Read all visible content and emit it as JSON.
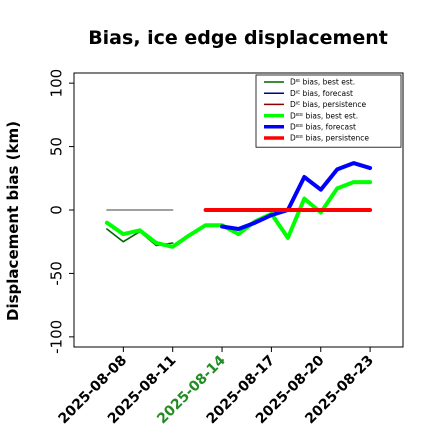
{
  "chart_data": {
    "type": "line",
    "title": "Bias, ice edge displacement",
    "ylabel": "Displacement bias (km)",
    "xlabel": "",
    "ylim": [
      -108,
      108
    ],
    "x_range": [
      "2025-08-05",
      "2025-08-25"
    ],
    "yticks": [
      100,
      50,
      0,
      -50,
      -100
    ],
    "xticks": [
      "2025-08-08",
      "2025-08-11",
      "2025-08-14",
      "2025-08-17",
      "2025-08-20",
      "2025-08-23"
    ],
    "highlight_tick": "2025-08-14",
    "highlight_color": "#228B22",
    "grid": false,
    "legend_position": "top-right",
    "series": [
      {
        "name": "Dᴵᴱ bias, best est.",
        "color": "#006400",
        "width": 1.6,
        "points": [
          [
            "2025-08-07",
            -15
          ],
          [
            "2025-08-08",
            -25
          ],
          [
            "2025-08-09",
            -17
          ],
          [
            "2025-08-10",
            -28
          ],
          [
            "2025-08-11",
            -26
          ]
        ]
      },
      {
        "name": "Dᴵᴱ bias, forecast",
        "color": "#00008B",
        "width": 1.6,
        "points": []
      },
      {
        "name": "Dᴵᴱ bias, persistence",
        "color": "#8B0000",
        "width": 1.6,
        "points": []
      },
      {
        "name": "Dᴵᴱᴱ bias, best est.",
        "color": "#00ff00",
        "width": 4,
        "points": [
          [
            "2025-08-07",
            -10
          ],
          [
            "2025-08-08",
            -19
          ],
          [
            "2025-08-09",
            -16
          ],
          [
            "2025-08-10",
            -26
          ],
          [
            "2025-08-11",
            -29
          ],
          [
            "2025-08-12",
            -20
          ],
          [
            "2025-08-13",
            -12
          ],
          [
            "2025-08-14",
            -12
          ],
          [
            "2025-08-15",
            -19
          ],
          [
            "2025-08-16",
            -9
          ],
          [
            "2025-08-17",
            -3
          ],
          [
            "2025-08-18",
            -22
          ],
          [
            "2025-08-19",
            9
          ],
          [
            "2025-08-20",
            -2
          ],
          [
            "2025-08-21",
            17
          ],
          [
            "2025-08-22",
            22
          ],
          [
            "2025-08-23",
            22
          ]
        ]
      },
      {
        "name": "Dᴵᴱᴱ bias, forecast",
        "color": "#0000ff",
        "width": 4,
        "points": [
          [
            "2025-08-14",
            -13
          ],
          [
            "2025-08-15",
            -15
          ],
          [
            "2025-08-16",
            -10
          ],
          [
            "2025-08-17",
            -4
          ],
          [
            "2025-08-18",
            0
          ],
          [
            "2025-08-19",
            26
          ],
          [
            "2025-08-20",
            16
          ],
          [
            "2025-08-21",
            32
          ],
          [
            "2025-08-22",
            37
          ],
          [
            "2025-08-23",
            33
          ]
        ]
      },
      {
        "name": "Dᴵᴱᴱ bias, persistence",
        "color": "#ff0000",
        "width": 4,
        "points": [
          [
            "2025-08-13",
            0
          ],
          [
            "2025-08-14",
            0
          ],
          [
            "2025-08-15",
            0
          ],
          [
            "2025-08-16",
            0
          ],
          [
            "2025-08-17",
            0
          ],
          [
            "2025-08-18",
            0
          ],
          [
            "2025-08-19",
            0
          ],
          [
            "2025-08-20",
            0
          ],
          [
            "2025-08-21",
            0
          ],
          [
            "2025-08-22",
            0
          ],
          [
            "2025-08-23",
            0
          ]
        ]
      },
      {
        "name": "",
        "color": "#808080",
        "width": 1.4,
        "legend": false,
        "points": [
          [
            "2025-08-07",
            0
          ],
          [
            "2025-08-08",
            0
          ],
          [
            "2025-08-09",
            0
          ],
          [
            "2025-08-10",
            0
          ],
          [
            "2025-08-11",
            0
          ]
        ]
      }
    ]
  }
}
